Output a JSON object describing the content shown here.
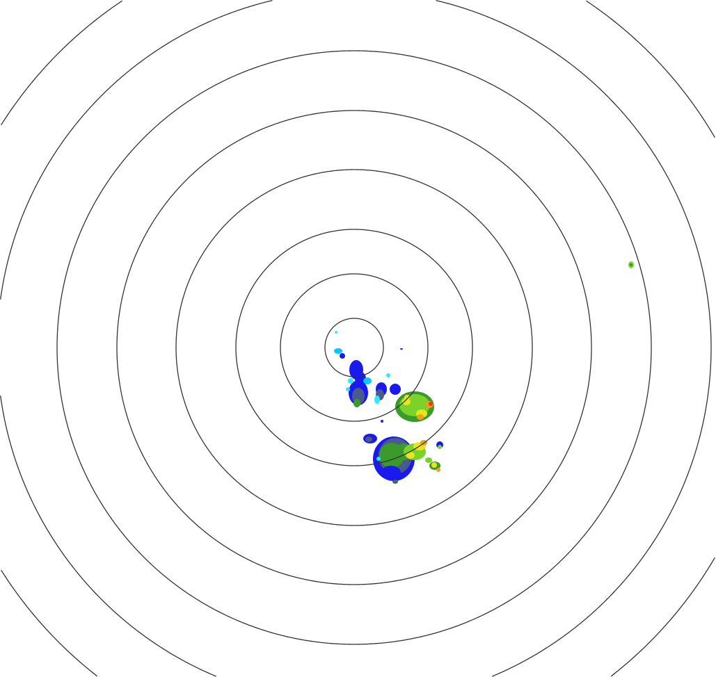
{
  "radar": {
    "range_ring_count": 8,
    "ring_color": "#333333",
    "reflectivity_colors": {
      "light_cyan": "#33e6ff",
      "cyan": "#00c8ff",
      "blue": "#1a1aee",
      "slate": "#4a5a8a",
      "green": "#3a9a2a",
      "light_green": "#7ad22a",
      "yellow": "#e6e61a",
      "orange": "#f0a020",
      "red": "#e83a10",
      "dark_teal": "#3a6a5a"
    }
  }
}
